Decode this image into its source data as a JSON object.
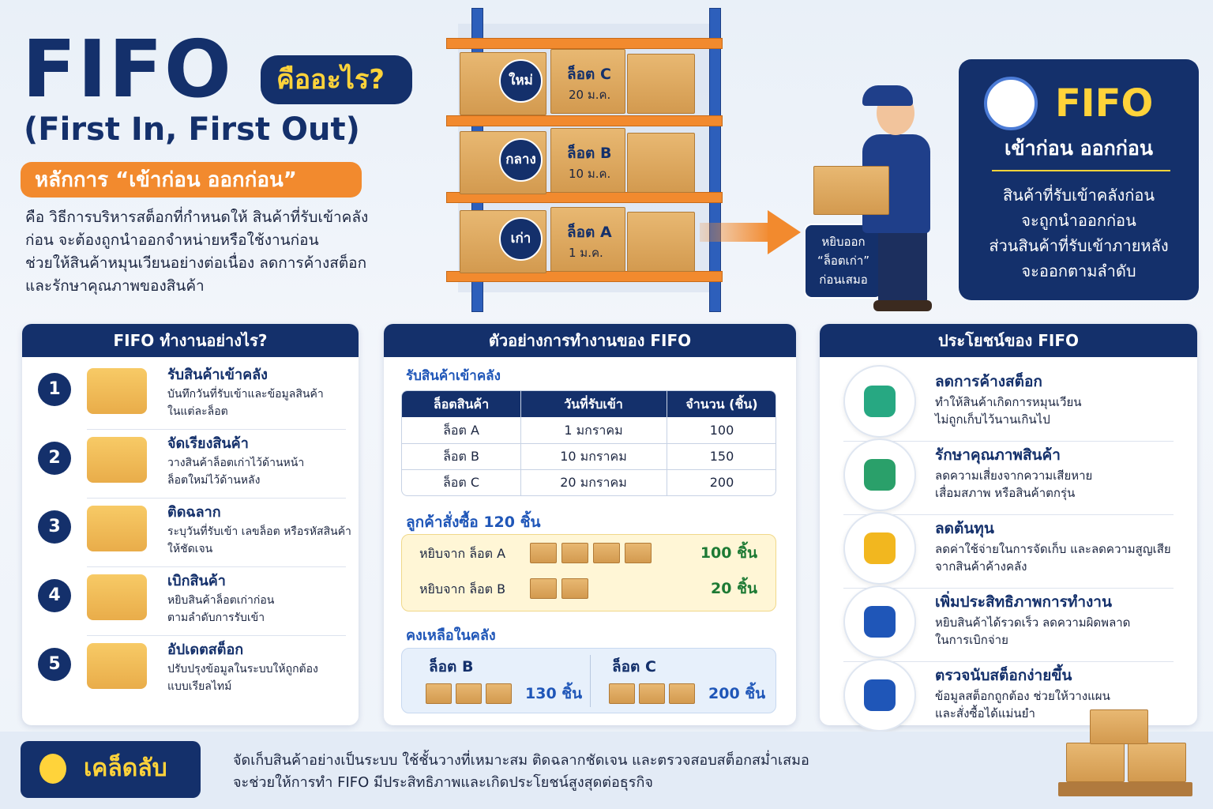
{
  "header": {
    "title": "FIFO",
    "question": "คืออะไร?",
    "subtitle": "(First In, First Out)",
    "principle": "หลักการ “เข้าก่อน ออกก่อน”",
    "description": [
      "คือ วิธีการบริหารสต็อกที่กำหนดให้ สินค้าที่รับเข้าคลัง",
      "ก่อน จะต้องถูกนำออกจำหน่ายหรือใช้งานก่อน",
      "ช่วยให้สินค้าหมุนเวียนอย่างต่อเนื่อง ลดการค้างสต็อก",
      "และรักษาคุณภาพของสินค้า"
    ]
  },
  "shelf": {
    "rows": [
      {
        "badge": "ใหม่",
        "lot": "ล็อต C",
        "date": "20 ม.ค."
      },
      {
        "badge": "กลาง",
        "lot": "ล็อต B",
        "date": "10 ม.ค."
      },
      {
        "badge": "เก่า",
        "lot": "ล็อต A",
        "date": "1 ม.ค."
      }
    ],
    "pick_label": [
      "หยิบออก",
      "“ล็อตเก่า”",
      "ก่อนเสมอ"
    ]
  },
  "definition": {
    "title": "FIFO",
    "subtitle": "เข้าก่อน ออกก่อน",
    "text": [
      "สินค้าที่รับเข้าคลังก่อน",
      "จะถูกนำออกก่อน",
      "ส่วนสินค้าที่รับเข้าภายหลัง",
      "จะออกตามลำดับ"
    ]
  },
  "steps": {
    "title": "FIFO ทำงานอย่างไร?",
    "items": [
      {
        "number": 1,
        "title": "รับสินค้าเข้าคลัง",
        "desc": [
          "บันทึกวันที่รับเข้าและข้อมูลสินค้า",
          "ในแต่ละล็อต"
        ]
      },
      {
        "number": 2,
        "title": "จัดเรียงสินค้า",
        "desc": [
          "วางสินค้าล็อตเก่าไว้ด้านหน้า",
          "ล็อตใหม่ไว้ด้านหลัง"
        ]
      },
      {
        "number": 3,
        "title": "ติดฉลาก",
        "desc": [
          "ระบุวันที่รับเข้า เลขล็อต หรือรหัสสินค้า",
          "ให้ชัดเจน"
        ]
      },
      {
        "number": 4,
        "title": "เบิกสินค้า",
        "desc": [
          "หยิบสินค้าล็อตเก่าก่อน",
          "ตามลำดับการรับเข้า"
        ]
      },
      {
        "number": 5,
        "title": "อัปเดตสต็อก",
        "desc": [
          "ปรับปรุงข้อมูลในระบบให้ถูกต้อง",
          "แบบเรียลไทม์"
        ]
      }
    ]
  },
  "example": {
    "title": "ตัวอย่างการทำงานของ FIFO",
    "receive_heading": "รับสินค้าเข้าคลัง",
    "table": {
      "headers": [
        "ล็อตสินค้า",
        "วันที่รับเข้า",
        "จำนวน (ชิ้น)"
      ],
      "rows": [
        [
          "ล็อต A",
          "1 มกราคม",
          "100"
        ],
        [
          "ล็อต B",
          "10 มกราคม",
          "150"
        ],
        [
          "ล็อต C",
          "20 มกราคม",
          "200"
        ]
      ]
    },
    "order_heading": "ลูกค้าสั่งซื้อ 120 ชิ้น",
    "picks": [
      {
        "label": "หยิบจาก ล็อต A",
        "qty": "100 ชิ้น"
      },
      {
        "label": "หยิบจาก ล็อต B",
        "qty": "20 ชิ้น"
      }
    ],
    "remaining_heading": "คงเหลือในคลัง",
    "remaining": [
      {
        "lot": "ล็อต B",
        "qty": "130 ชิ้น"
      },
      {
        "lot": "ล็อต C",
        "qty": "200 ชิ้น"
      }
    ]
  },
  "benefits": {
    "title": "ประโยชน์ของ FIFO",
    "items": [
      {
        "title": "ลดการค้างสต็อก",
        "desc": [
          "ทำให้สินค้าเกิดการหมุนเวียน",
          "ไม่ถูกเก็บไว้นานเกินไป"
        ]
      },
      {
        "title": "รักษาคุณภาพสินค้า",
        "desc": [
          "ลดความเสี่ยงจากความเสียหาย",
          "เสื่อมสภาพ หรือสินค้าตกรุ่น"
        ]
      },
      {
        "title": "ลดต้นทุน",
        "desc": [
          "ลดค่าใช้จ่ายในการจัดเก็บ และลดความสูญเสีย",
          "จากสินค้าค้างคลัง"
        ]
      },
      {
        "title": "เพิ่มประสิทธิภาพการทำงาน",
        "desc": [
          "หยิบสินค้าได้รวดเร็ว ลดความผิดพลาด",
          "ในการเบิกจ่าย"
        ]
      },
      {
        "title": "ตรวจนับสต็อกง่ายขึ้น",
        "desc": [
          "ข้อมูลสต็อกถูกต้อง ช่วยให้วางแผน",
          "และสั่งซื้อได้แม่นยำ"
        ]
      }
    ]
  },
  "tip": {
    "label": "เคล็ดลับ",
    "text": [
      "จัดเก็บสินค้าอย่างเป็นระบบ ใช้ชั้นวางที่เหมาะสม ติดฉลากชัดเจน และตรวจสอบสต็อกสม่ำเสมอ",
      "จะช่วยให้การทำ FIFO มีประสิทธิภาพและเกิดประโยชน์สูงสุดต่อธุรกิจ"
    ]
  }
}
